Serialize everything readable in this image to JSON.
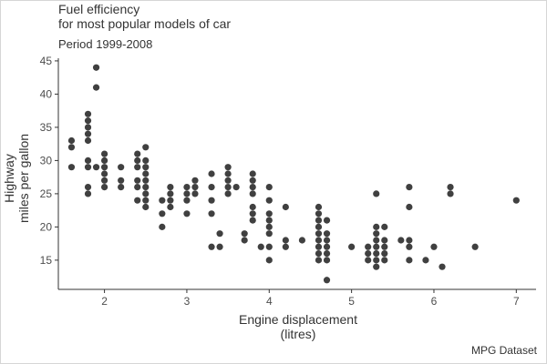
{
  "chart_data": {
    "type": "scatter",
    "title_lines": [
      "Fuel efficiency",
      "for most popular models of car"
    ],
    "subtitle": "Period 1999-2008",
    "caption": "MPG Dataset",
    "xlabel_lines": [
      "Engine displacement",
      "(litres)"
    ],
    "ylabel_lines": [
      "Highway",
      "miles per gallon"
    ],
    "xlim": [
      1.44,
      7.24
    ],
    "ylim": [
      10.6,
      45.4
    ],
    "xticks": [
      2,
      3,
      4,
      5,
      6,
      7
    ],
    "yticks": [
      15,
      20,
      25,
      30,
      35,
      40,
      45
    ],
    "grid": false,
    "point_color": "#404040",
    "points": [
      [
        1.6,
        33
      ],
      [
        1.6,
        32
      ],
      [
        1.6,
        29
      ],
      [
        1.8,
        37
      ],
      [
        1.8,
        36
      ],
      [
        1.8,
        35
      ],
      [
        1.8,
        34
      ],
      [
        1.8,
        33
      ],
      [
        1.8,
        30
      ],
      [
        1.8,
        29
      ],
      [
        1.8,
        26
      ],
      [
        1.8,
        25
      ],
      [
        1.9,
        44
      ],
      [
        1.9,
        41
      ],
      [
        1.9,
        29
      ],
      [
        2.0,
        31
      ],
      [
        2.0,
        30
      ],
      [
        2.0,
        29
      ],
      [
        2.0,
        28
      ],
      [
        2.0,
        27
      ],
      [
        2.0,
        26
      ],
      [
        2.2,
        29
      ],
      [
        2.2,
        27
      ],
      [
        2.2,
        26
      ],
      [
        2.4,
        31
      ],
      [
        2.4,
        30
      ],
      [
        2.4,
        29
      ],
      [
        2.4,
        27
      ],
      [
        2.4,
        26
      ],
      [
        2.4,
        24
      ],
      [
        2.5,
        32
      ],
      [
        2.5,
        30
      ],
      [
        2.5,
        29
      ],
      [
        2.5,
        28
      ],
      [
        2.5,
        27
      ],
      [
        2.5,
        26
      ],
      [
        2.5,
        25
      ],
      [
        2.5,
        24
      ],
      [
        2.5,
        23
      ],
      [
        2.7,
        24
      ],
      [
        2.7,
        22
      ],
      [
        2.7,
        20
      ],
      [
        2.8,
        26
      ],
      [
        2.8,
        25
      ],
      [
        2.8,
        24
      ],
      [
        2.8,
        23
      ],
      [
        3.0,
        26
      ],
      [
        3.0,
        25
      ],
      [
        3.0,
        24
      ],
      [
        3.0,
        22
      ],
      [
        3.1,
        27
      ],
      [
        3.1,
        26
      ],
      [
        3.1,
        25
      ],
      [
        3.3,
        28
      ],
      [
        3.3,
        26
      ],
      [
        3.3,
        24
      ],
      [
        3.3,
        22
      ],
      [
        3.3,
        17
      ],
      [
        3.4,
        19
      ],
      [
        3.4,
        17
      ],
      [
        3.5,
        29
      ],
      [
        3.5,
        28
      ],
      [
        3.5,
        27
      ],
      [
        3.5,
        26
      ],
      [
        3.5,
        25
      ],
      [
        3.6,
        26
      ],
      [
        3.7,
        19
      ],
      [
        3.7,
        18
      ],
      [
        3.8,
        28
      ],
      [
        3.8,
        27
      ],
      [
        3.8,
        26
      ],
      [
        3.8,
        25
      ],
      [
        3.8,
        23
      ],
      [
        3.8,
        22
      ],
      [
        3.8,
        21
      ],
      [
        3.9,
        17
      ],
      [
        4.0,
        26
      ],
      [
        4.0,
        24
      ],
      [
        4.0,
        22
      ],
      [
        4.0,
        21
      ],
      [
        4.0,
        20
      ],
      [
        4.0,
        19
      ],
      [
        4.0,
        17
      ],
      [
        4.0,
        15
      ],
      [
        4.2,
        23
      ],
      [
        4.2,
        18
      ],
      [
        4.2,
        17
      ],
      [
        4.4,
        18
      ],
      [
        4.6,
        23
      ],
      [
        4.6,
        22
      ],
      [
        4.6,
        21
      ],
      [
        4.6,
        20
      ],
      [
        4.6,
        19
      ],
      [
        4.6,
        18
      ],
      [
        4.6,
        17
      ],
      [
        4.6,
        16
      ],
      [
        4.6,
        15
      ],
      [
        4.7,
        21
      ],
      [
        4.7,
        19
      ],
      [
        4.7,
        18
      ],
      [
        4.7,
        17
      ],
      [
        4.7,
        16
      ],
      [
        4.7,
        15
      ],
      [
        4.7,
        12
      ],
      [
        5.0,
        17
      ],
      [
        5.2,
        17
      ],
      [
        5.2,
        16
      ],
      [
        5.2,
        15
      ],
      [
        5.3,
        25
      ],
      [
        5.3,
        20
      ],
      [
        5.3,
        19
      ],
      [
        5.3,
        18
      ],
      [
        5.3,
        17
      ],
      [
        5.3,
        16
      ],
      [
        5.3,
        15
      ],
      [
        5.3,
        14
      ],
      [
        5.4,
        20
      ],
      [
        5.4,
        18
      ],
      [
        5.4,
        17
      ],
      [
        5.4,
        16
      ],
      [
        5.4,
        15
      ],
      [
        5.6,
        18
      ],
      [
        5.7,
        26
      ],
      [
        5.7,
        23
      ],
      [
        5.7,
        18
      ],
      [
        5.7,
        17
      ],
      [
        5.7,
        15
      ],
      [
        5.9,
        15
      ],
      [
        6.0,
        17
      ],
      [
        6.1,
        14
      ],
      [
        6.2,
        26
      ],
      [
        6.2,
        25
      ],
      [
        6.5,
        17
      ],
      [
        7.0,
        24
      ]
    ]
  }
}
